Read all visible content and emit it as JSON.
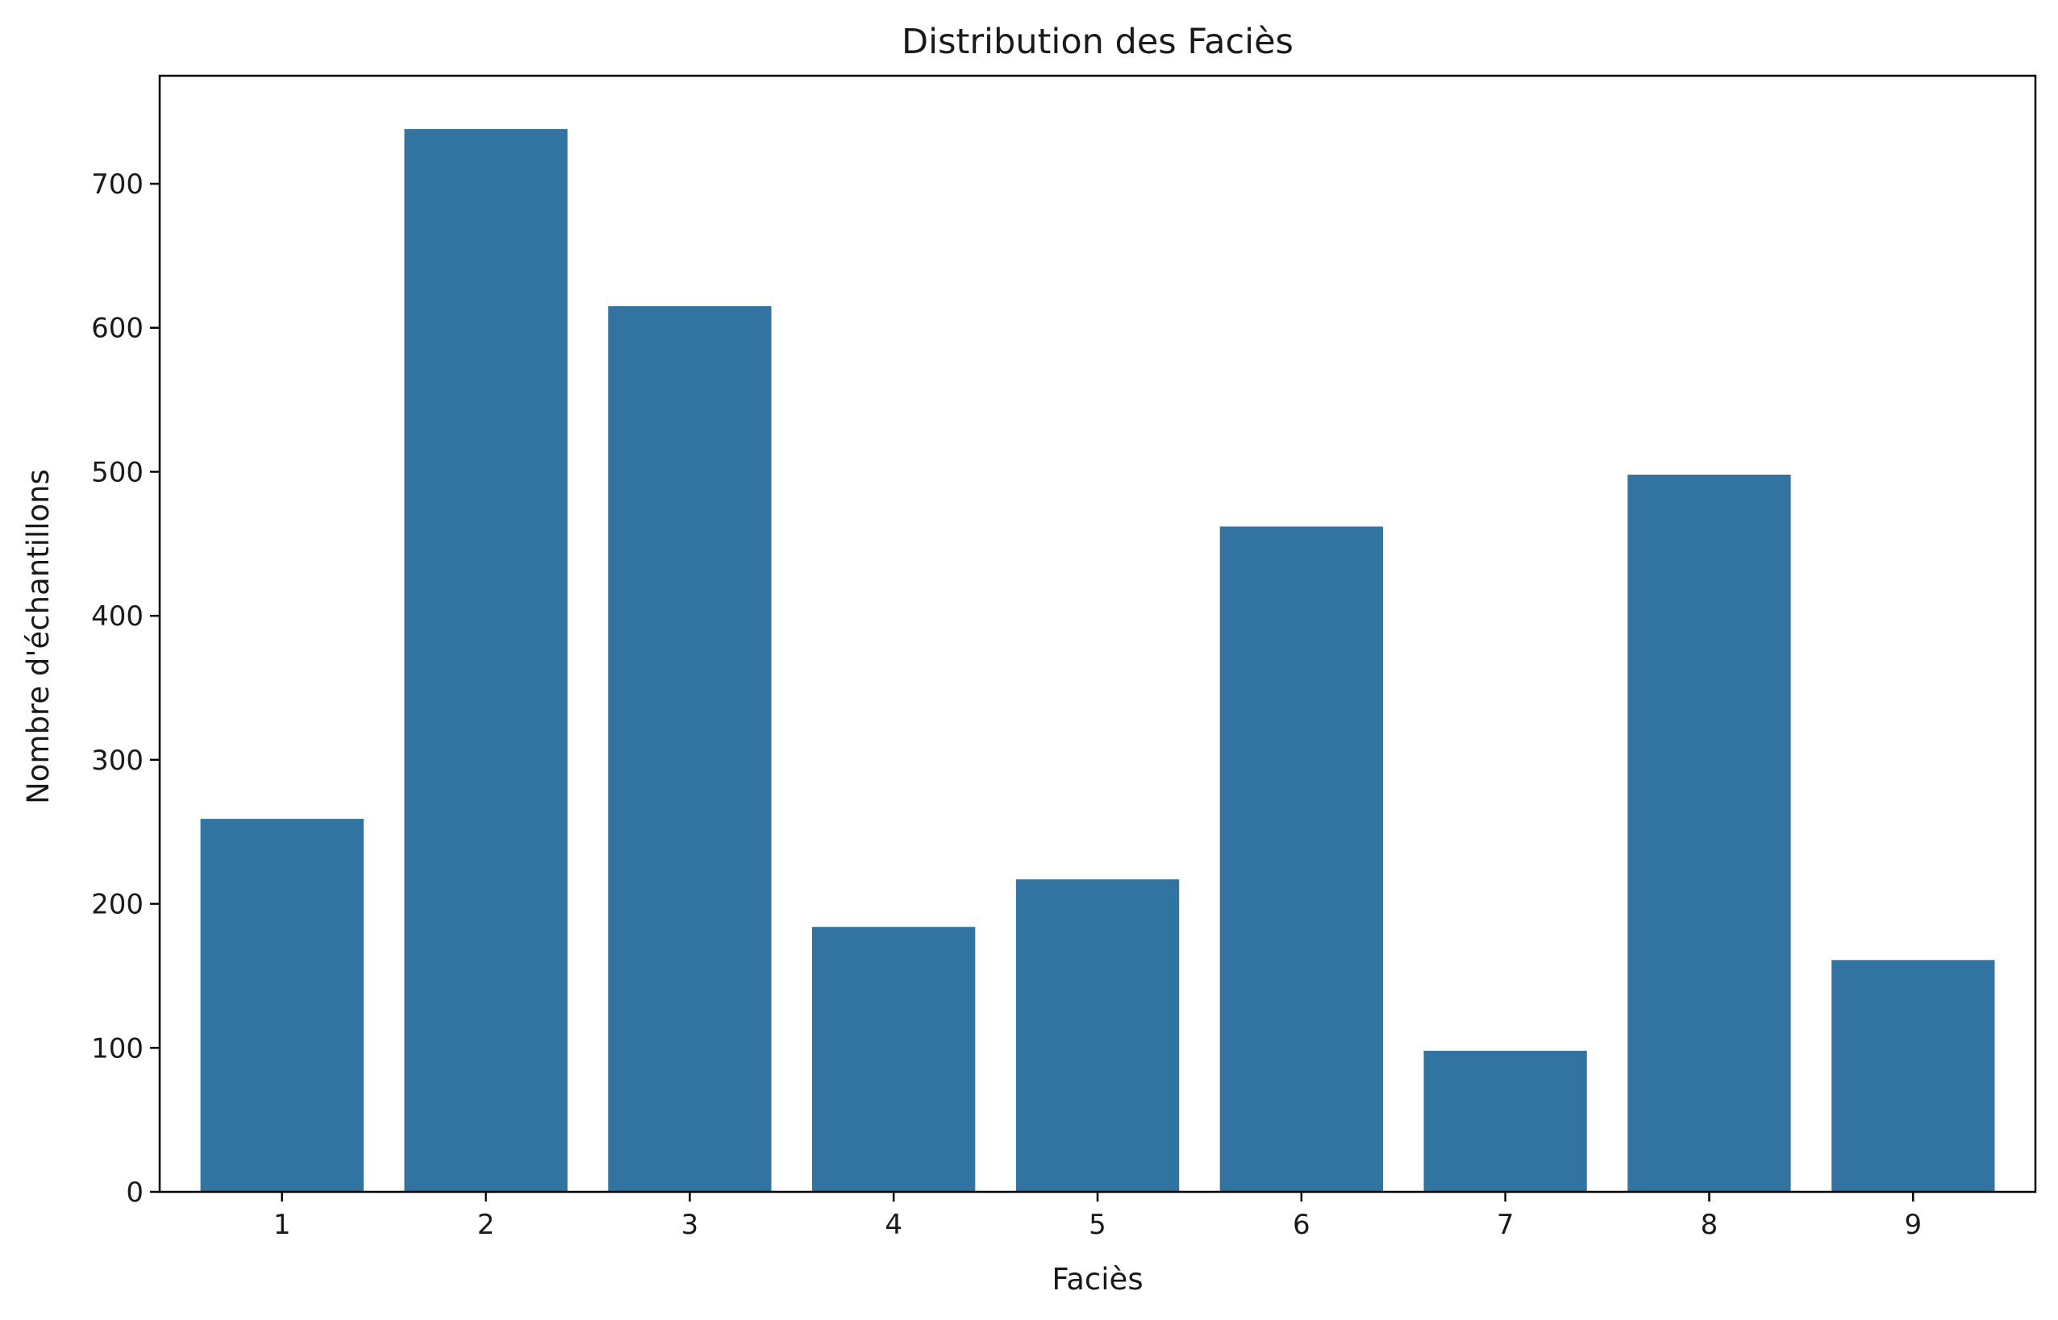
{
  "chart_data": {
    "type": "bar",
    "title": "Distribution des Faciès",
    "xlabel": "Faciès",
    "ylabel": "Nombre d'échantillons",
    "categories": [
      "1",
      "2",
      "3",
      "4",
      "5",
      "6",
      "7",
      "8",
      "9"
    ],
    "values": [
      259,
      738,
      615,
      184,
      217,
      462,
      98,
      498,
      161
    ],
    "ylim": [
      0,
      775
    ],
    "yticks": [
      0,
      100,
      200,
      300,
      400,
      500,
      600,
      700
    ],
    "grid": false,
    "bar_color": "#3274a1"
  }
}
